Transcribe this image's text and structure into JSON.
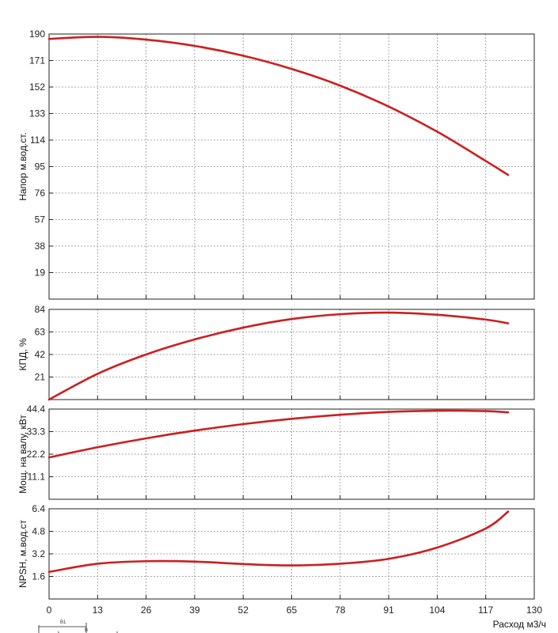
{
  "style": {
    "curve_color": "#cc1f1f",
    "grid_color": "#8f8f8f",
    "axis_color": "#222222",
    "background": "#ffffff"
  },
  "xaxis": {
    "label": "Расход м3/ч",
    "ticks": [
      "0",
      "13",
      "26",
      "39",
      "52",
      "65",
      "78",
      "91",
      "104",
      "117",
      "130"
    ],
    "range": [
      0,
      130
    ]
  },
  "corner_diagram": {
    "labels": [
      "В1",
      "В"
    ]
  },
  "chart_data": [
    {
      "type": "line",
      "ylabel": "Напор м.вод.ст.",
      "ylim": [
        0,
        190
      ],
      "yticks": [
        "19",
        "38",
        "57",
        "76",
        "95",
        "114",
        "133",
        "152",
        "171",
        "190"
      ],
      "grid": true,
      "series": [
        {
          "x": [
            0,
            13,
            26,
            39,
            52,
            65,
            78,
            91,
            104,
            117,
            123
          ],
          "y": [
            186.5,
            188,
            186,
            181.5,
            174.5,
            165,
            153,
            138,
            120,
            99,
            89
          ]
        }
      ]
    },
    {
      "type": "line",
      "ylabel": "КПД, %",
      "ylim": [
        0,
        84
      ],
      "yticks": [
        "21",
        "42",
        "63",
        "84"
      ],
      "grid": true,
      "series": [
        {
          "x": [
            0,
            13,
            26,
            39,
            52,
            65,
            78,
            91,
            104,
            117,
            123
          ],
          "y": [
            0,
            24,
            42,
            56,
            67,
            75,
            79.5,
            81,
            79,
            74.5,
            71
          ]
        }
      ]
    },
    {
      "type": "line",
      "ylabel": "Мощ. на валу, кВт",
      "ylim": [
        0,
        44.4
      ],
      "yticks": [
        "11.1",
        "22.2",
        "33.3",
        "44.4"
      ],
      "grid": true,
      "series": [
        {
          "x": [
            0,
            13,
            26,
            39,
            52,
            65,
            78,
            91,
            104,
            117,
            123
          ],
          "y": [
            20.6,
            25.6,
            30,
            33.8,
            37,
            39.6,
            41.6,
            43,
            43.6,
            43.4,
            42.8
          ]
        }
      ]
    },
    {
      "type": "line",
      "ylabel": "NPSH, м.вод.ст",
      "ylim": [
        0,
        6.4
      ],
      "yticks": [
        "1.6",
        "3.2",
        "4.8",
        "6.4"
      ],
      "grid": true,
      "series": [
        {
          "x": [
            0,
            13,
            26,
            39,
            52,
            65,
            78,
            91,
            104,
            117,
            123
          ],
          "y": [
            1.92,
            2.5,
            2.68,
            2.65,
            2.48,
            2.38,
            2.5,
            2.85,
            3.65,
            5.0,
            6.2
          ]
        }
      ]
    }
  ]
}
